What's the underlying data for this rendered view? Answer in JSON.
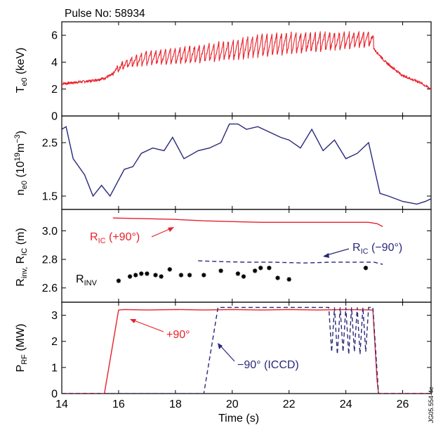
{
  "pulse_label": "Pulse No: 58934",
  "side_note": "JG05.554-4c",
  "colors": {
    "red": "#e8202a",
    "blue": "#28287a",
    "black": "#000000"
  },
  "chart_data": [
    {
      "type": "line",
      "panel": "Te0",
      "ylabel_main": "T",
      "ylabel_sub": "e0",
      "ylabel_unit": " (keV)",
      "ylim": [
        0,
        7
      ],
      "yticks": [
        0,
        2,
        4,
        6
      ],
      "series": [
        {
          "color": "#e8202a",
          "x": [
            14,
            15,
            15.5,
            15.9,
            16.3,
            17,
            18,
            19,
            20,
            21,
            22,
            23,
            24,
            24.9,
            25.4,
            26,
            26.6,
            27
          ],
          "base": [
            2.4,
            2.6,
            2.8,
            3.2,
            3.6,
            3.8,
            3.9,
            4.0,
            4.2,
            4.4,
            4.6,
            4.8,
            5.0,
            5.2,
            4.0,
            3.0,
            2.5,
            2.0
          ],
          "peak": [
            2.4,
            2.6,
            2.8,
            3.6,
            4.3,
            4.9,
            5.1,
            5.4,
            5.7,
            6.2,
            6.3,
            6.3,
            6.3,
            6.3,
            4.2,
            3.0,
            2.5,
            2.0
          ],
          "sawtooth_period_s": 0.17,
          "sawtooth_window": [
            15.8,
            25.0
          ]
        }
      ]
    },
    {
      "type": "line",
      "panel": "ne0",
      "ylabel_main": "n",
      "ylabel_sub": "e0",
      "ylabel_unit": " (10",
      "ylabel_exp": "19",
      "ylabel_tail": "m",
      "ylabel_exp2": "−3",
      "ylabel_close": ")",
      "ylim": [
        1.25,
        3.0
      ],
      "yticks": [
        1.5,
        2.5
      ],
      "ytick_labels": [
        "1.5",
        "2.5"
      ],
      "series": [
        {
          "color": "#28287a",
          "x": [
            14,
            14.15,
            14.4,
            14.8,
            15.1,
            15.4,
            15.7,
            16.0,
            16.2,
            16.5,
            16.8,
            17.2,
            17.6,
            17.9,
            18.3,
            18.8,
            19.2,
            19.6,
            19.9,
            20.2,
            20.5,
            20.9,
            21.3,
            21.7,
            22.0,
            22.4,
            22.8,
            23.2,
            23.6,
            24.0,
            24.4,
            24.8,
            25.2,
            25.5,
            26.0,
            26.5,
            26.8,
            27.0
          ],
          "y": [
            2.75,
            2.8,
            2.2,
            1.9,
            1.5,
            1.7,
            1.5,
            1.8,
            2.0,
            2.05,
            2.3,
            2.4,
            2.35,
            2.6,
            2.2,
            2.35,
            2.4,
            2.5,
            2.85,
            2.85,
            2.75,
            2.8,
            2.7,
            2.6,
            2.55,
            2.4,
            2.75,
            2.35,
            2.55,
            2.2,
            2.3,
            2.5,
            1.55,
            1.5,
            1.4,
            1.35,
            1.4,
            1.45
          ]
        }
      ]
    },
    {
      "type": "scatter",
      "panel": "Rinv_RIC",
      "ylabel_main": "R",
      "ylabel_sub": "inv,",
      "ylabel_main2": " R",
      "ylabel_sub2": "IC",
      "ylabel_unit": " (m)",
      "ylim": [
        2.5,
        3.15
      ],
      "yticks": [
        2.6,
        2.8,
        3.0
      ],
      "ytick_labels": [
        "2.6",
        "2.8",
        "3.0"
      ],
      "lines": [
        {
          "name_main": "R",
          "name_sub": "IC",
          "name_tail": " (+90°)",
          "color": "#e8202a",
          "dash": "solid",
          "x": [
            15.8,
            17,
            18,
            19,
            20,
            21,
            22,
            23,
            24,
            24.8,
            25.1,
            25.3
          ],
          "y": [
            3.09,
            3.085,
            3.08,
            3.07,
            3.065,
            3.06,
            3.06,
            3.06,
            3.06,
            3.06,
            3.05,
            3.03
          ]
        },
        {
          "name_main": "R",
          "name_sub": "IC",
          "name_tail": " (−90°)",
          "color": "#28287a",
          "dash": "dashed",
          "x": [
            18.8,
            19.5,
            20.5,
            21.5,
            22.5,
            23.5,
            24.5,
            25.0,
            25.3
          ],
          "y": [
            2.79,
            2.785,
            2.78,
            2.78,
            2.775,
            2.78,
            2.78,
            2.78,
            2.765
          ]
        }
      ],
      "points_label_main": "R",
      "points_label_sub": "INV",
      "points": {
        "color": "#000000",
        "x": [
          16.0,
          16.4,
          16.6,
          16.8,
          17.0,
          17.3,
          17.5,
          17.8,
          18.2,
          18.5,
          19.0,
          19.6,
          20.2,
          20.4,
          20.8,
          21.0,
          21.3,
          21.6,
          22.0,
          24.7
        ],
        "y": [
          2.65,
          2.68,
          2.69,
          2.7,
          2.7,
          2.69,
          2.68,
          2.73,
          2.69,
          2.69,
          2.69,
          2.72,
          2.7,
          2.68,
          2.72,
          2.74,
          2.74,
          2.67,
          2.66,
          2.74
        ]
      }
    },
    {
      "type": "line",
      "panel": "PRF",
      "ylabel_main": "P",
      "ylabel_sub": "RF",
      "ylabel_unit": " (MW)",
      "xlabel": "Time (s)",
      "xlim": [
        14,
        27
      ],
      "xticks": [
        14,
        16,
        18,
        20,
        22,
        24,
        26
      ],
      "xtick_labels": [
        "14",
        "16",
        "18",
        "20",
        "22",
        "24",
        "26"
      ],
      "ylim": [
        0,
        3.5
      ],
      "yticks": [
        0,
        1,
        2,
        3
      ],
      "ytick_labels": [
        "0",
        "1",
        "2",
        "3"
      ],
      "series": [
        {
          "name": "+90°",
          "color": "#e8202a",
          "dash": "solid",
          "x": [
            14,
            15.5,
            16.0,
            16.2,
            17,
            18,
            19,
            20,
            21,
            22,
            23,
            24,
            24.95,
            25.1,
            25.15,
            27
          ],
          "y": [
            0,
            0,
            3.2,
            3.22,
            3.2,
            3.22,
            3.2,
            3.22,
            3.2,
            3.22,
            3.2,
            3.22,
            3.2,
            0.5,
            0,
            0
          ]
        },
        {
          "name": "−90° (ICCD)",
          "color": "#28287a",
          "dash": "dashed",
          "x": [
            14,
            19.0,
            19.5,
            20,
            21,
            22,
            23.4,
            23.5,
            23.6,
            23.7,
            23.8,
            23.9,
            24.0,
            24.1,
            24.2,
            24.3,
            24.4,
            24.5,
            24.6,
            24.7,
            24.8,
            24.95,
            25.15,
            27
          ],
          "y": [
            0,
            0,
            3.3,
            3.3,
            3.3,
            3.3,
            3.3,
            1.6,
            3.3,
            1.5,
            3.3,
            1.6,
            3.3,
            1.5,
            3.3,
            1.6,
            3.3,
            1.5,
            3.3,
            1.6,
            3.3,
            3.3,
            0,
            0
          ]
        }
      ]
    }
  ]
}
